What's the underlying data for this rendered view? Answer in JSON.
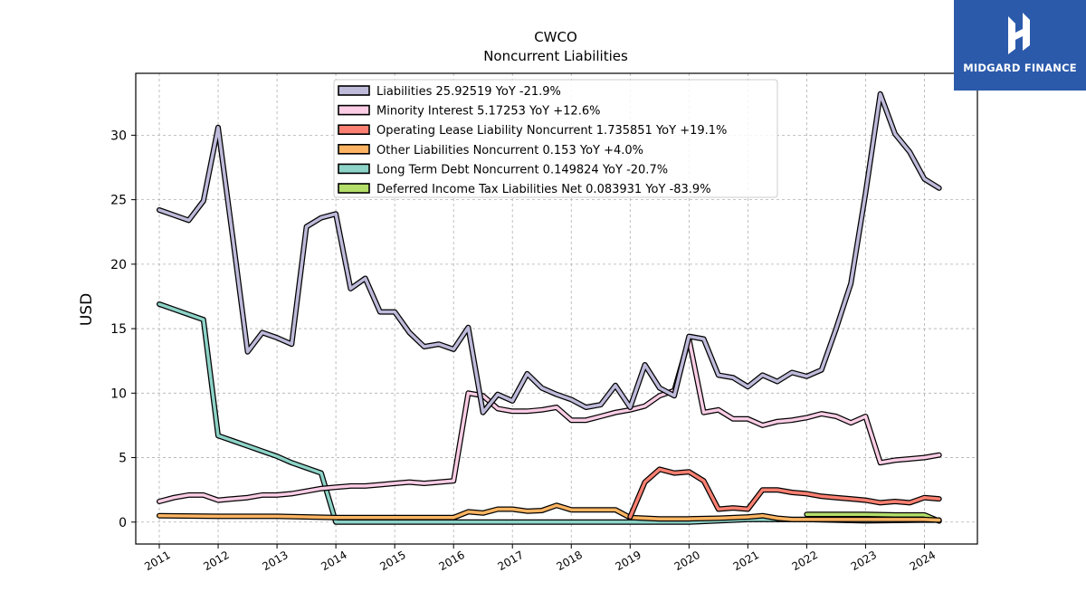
{
  "chart_data": {
    "type": "line",
    "title": "CWCO",
    "subtitle": "Noncurrent  Liabilities",
    "xlabel": "",
    "ylabel": "USD",
    "xlim": [
      2010.6,
      2024.9
    ],
    "ylim": [
      -1.7,
      34.8
    ],
    "x_ticks": [
      2011,
      2012,
      2013,
      2014,
      2015,
      2016,
      2017,
      2018,
      2019,
      2020,
      2021,
      2022,
      2023,
      2024
    ],
    "y_ticks": [
      0,
      5,
      10,
      15,
      20,
      25,
      30
    ],
    "grid": true,
    "legend_position": "top-center",
    "series": [
      {
        "name": "Liabilities",
        "legend": "Liabilities  25.92519 YoY -21.9%",
        "color": "#bebada",
        "x": [
          2011.0,
          2011.25,
          2011.5,
          2011.75,
          2012.0,
          2012.25,
          2012.5,
          2012.75,
          2013.0,
          2013.25,
          2013.5,
          2013.75,
          2014.0,
          2014.25,
          2014.5,
          2014.75,
          2015.0,
          2015.25,
          2015.5,
          2015.75,
          2016.0,
          2016.25,
          2016.5,
          2016.75,
          2017.0,
          2017.25,
          2017.5,
          2017.75,
          2018.0,
          2018.25,
          2018.5,
          2018.75,
          2019.0,
          2019.25,
          2019.5,
          2019.75,
          2020.0,
          2020.25,
          2020.5,
          2020.75,
          2021.0,
          2021.25,
          2021.5,
          2021.75,
          2022.0,
          2022.25,
          2022.5,
          2022.75,
          2023.0,
          2023.25,
          2023.5,
          2023.75,
          2024.0,
          2024.25
        ],
        "values": [
          24.2,
          23.8,
          23.4,
          24.9,
          30.6,
          22.0,
          13.2,
          14.7,
          14.3,
          13.8,
          22.9,
          23.6,
          23.9,
          18.1,
          18.9,
          16.3,
          16.3,
          14.7,
          13.6,
          13.8,
          13.4,
          15.1,
          8.5,
          9.9,
          9.4,
          11.5,
          10.4,
          9.9,
          9.5,
          8.9,
          9.1,
          10.6,
          8.9,
          12.2,
          10.4,
          9.8,
          14.4,
          14.2,
          11.4,
          11.2,
          10.5,
          11.4,
          10.9,
          11.6,
          11.3,
          11.8,
          15.0,
          18.5,
          25.5,
          33.2,
          30.1,
          28.7,
          26.6,
          25.9
        ]
      },
      {
        "name": "Minority Interest",
        "legend": "Minority Interest  5.17253 YoY +12.6%",
        "color": "#fccde5",
        "x": [
          2011.0,
          2011.25,
          2011.5,
          2011.75,
          2012.0,
          2012.25,
          2012.5,
          2012.75,
          2013.0,
          2013.25,
          2013.5,
          2013.75,
          2014.0,
          2014.25,
          2014.5,
          2014.75,
          2015.0,
          2015.25,
          2015.5,
          2015.75,
          2016.0,
          2016.25,
          2016.5,
          2016.75,
          2017.0,
          2017.25,
          2017.5,
          2017.75,
          2018.0,
          2018.25,
          2018.5,
          2018.75,
          2019.0,
          2019.25,
          2019.5,
          2019.75,
          2020.0,
          2020.25,
          2020.5,
          2020.75,
          2021.0,
          2021.25,
          2021.5,
          2021.75,
          2022.0,
          2022.25,
          2022.5,
          2022.75,
          2023.0,
          2023.25,
          2023.5,
          2023.75,
          2024.0,
          2024.25
        ],
        "values": [
          1.6,
          1.9,
          2.1,
          2.1,
          1.7,
          1.8,
          1.9,
          2.1,
          2.1,
          2.2,
          2.4,
          2.6,
          2.7,
          2.8,
          2.8,
          2.9,
          3.0,
          3.1,
          3.0,
          3.1,
          3.2,
          10.0,
          9.8,
          8.8,
          8.6,
          8.6,
          8.7,
          8.9,
          7.9,
          7.9,
          8.2,
          8.5,
          8.7,
          9.0,
          9.8,
          10.2,
          14.2,
          8.5,
          8.7,
          8.0,
          8.0,
          7.5,
          7.8,
          7.9,
          8.1,
          8.4,
          8.2,
          7.7,
          8.2,
          4.6,
          4.8,
          4.9,
          5.0,
          5.2
        ]
      },
      {
        "name": "Operating Lease Liability Noncurrent",
        "legend": "Operating Lease Liability Noncurrent  1.735851 YoY +19.1%",
        "color": "#fb8072",
        "x": [
          2019.0,
          2019.25,
          2019.5,
          2019.75,
          2020.0,
          2020.25,
          2020.5,
          2020.75,
          2021.0,
          2021.25,
          2021.5,
          2021.75,
          2022.0,
          2022.25,
          2022.5,
          2022.75,
          2023.0,
          2023.25,
          2023.5,
          2023.75,
          2024.0,
          2024.25
        ],
        "values": [
          0.4,
          3.1,
          4.1,
          3.8,
          3.9,
          3.2,
          1.0,
          1.1,
          1.0,
          2.5,
          2.5,
          2.3,
          2.2,
          2.0,
          1.9,
          1.8,
          1.7,
          1.5,
          1.6,
          1.5,
          1.9,
          1.8
        ]
      },
      {
        "name": "Other Liabilities Noncurrent",
        "legend": "Other Liabilities Noncurrent  0.153 YoY +4.0%",
        "color": "#fdb462",
        "x": [
          2011.0,
          2012.0,
          2013.0,
          2014.0,
          2015.0,
          2015.5,
          2016.0,
          2016.25,
          2016.5,
          2016.75,
          2017.0,
          2017.25,
          2017.5,
          2017.75,
          2018.0,
          2018.25,
          2018.5,
          2018.75,
          2019.0,
          2019.25,
          2019.5,
          2019.75,
          2020.0,
          2020.5,
          2021.0,
          2021.25,
          2021.5,
          2021.75,
          2022.0,
          2022.5,
          2023.0,
          2023.5,
          2024.0,
          2024.25
        ],
        "values": [
          0.5,
          0.45,
          0.45,
          0.35,
          0.35,
          0.35,
          0.35,
          0.8,
          0.7,
          1.0,
          1.0,
          0.85,
          0.9,
          1.3,
          0.95,
          0.95,
          0.95,
          0.95,
          0.35,
          0.3,
          0.25,
          0.25,
          0.25,
          0.3,
          0.4,
          0.5,
          0.3,
          0.2,
          0.2,
          0.2,
          0.2,
          0.2,
          0.2,
          0.15
        ]
      },
      {
        "name": "Long Term Debt Noncurrent",
        "legend": "Long Term Debt Noncurrent  0.149824 YoY -20.7%",
        "color": "#8dd3c7",
        "x": [
          2011.0,
          2011.25,
          2011.5,
          2011.75,
          2012.0,
          2012.25,
          2012.5,
          2012.75,
          2013.0,
          2013.25,
          2013.5,
          2013.75,
          2014.0,
          2015.0,
          2016.0,
          2017.0,
          2018.0,
          2019.0,
          2020.0,
          2021.0,
          2022.0,
          2023.0,
          2024.0,
          2024.25
        ],
        "values": [
          16.9,
          16.5,
          16.1,
          15.7,
          6.7,
          6.3,
          5.9,
          5.5,
          5.1,
          4.6,
          4.2,
          3.8,
          0.0,
          0.0,
          0.0,
          0.0,
          0.0,
          0.0,
          0.0,
          0.2,
          0.2,
          0.1,
          0.15,
          0.15
        ]
      },
      {
        "name": "Deferred Income Tax Liabilities Net",
        "legend": "Deferred Income Tax Liabilities Net  0.083931 YoY -83.9%",
        "color": "#b3de69",
        "x": [
          2022.0,
          2022.5,
          2023.0,
          2023.5,
          2024.0,
          2024.25
        ],
        "values": [
          0.6,
          0.6,
          0.6,
          0.55,
          0.55,
          0.08
        ]
      }
    ]
  },
  "brand": {
    "name": "MIDGARD FINANCE",
    "color": "#2b5aab"
  }
}
